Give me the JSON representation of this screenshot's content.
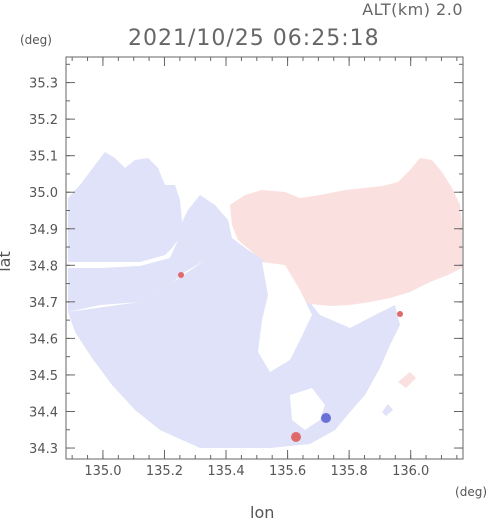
{
  "header": {
    "altitude_label": "ALT(km) 2.0",
    "timestamp": "2021/10/25 06:25:18"
  },
  "axes": {
    "x_label": "lon",
    "y_label": "lat",
    "x_unit": "(deg)",
    "y_unit": "(deg)",
    "x_ticks": [
      "135.0",
      "135.2",
      "135.4",
      "135.6",
      "135.8",
      "136.0"
    ],
    "y_ticks": [
      "35.3",
      "35.2",
      "35.1",
      "35.0",
      "34.9",
      "34.8",
      "34.7",
      "34.6",
      "34.5",
      "34.4",
      "34.3"
    ],
    "x_range": [
      134.88,
      136.17
    ],
    "y_range": [
      34.27,
      35.37
    ]
  },
  "colors": {
    "frame": "#666666",
    "approaching": "#dfe2f8",
    "receding": "#fbe0e0",
    "strong_blue": "#6a72d8",
    "strong_red": "#e06a6a"
  }
}
